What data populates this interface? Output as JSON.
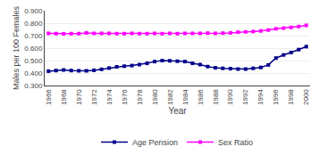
{
  "chart_data": {
    "type": "line",
    "x": [
      1966,
      1967,
      1968,
      1969,
      1970,
      1971,
      1972,
      1973,
      1974,
      1975,
      1976,
      1977,
      1978,
      1979,
      1980,
      1981,
      1982,
      1983,
      1984,
      1985,
      1986,
      1987,
      1988,
      1989,
      1990,
      1991,
      1992,
      1993,
      1994,
      1995,
      1996,
      1997,
      1998,
      1999,
      2000
    ],
    "series": [
      {
        "name": "Age Pension",
        "color": "#00008B",
        "marker": "square",
        "values": [
          0.415,
          0.42,
          0.425,
          0.42,
          0.418,
          0.418,
          0.422,
          0.43,
          0.44,
          0.45,
          0.455,
          0.46,
          0.468,
          0.478,
          0.492,
          0.5,
          0.498,
          0.495,
          0.492,
          0.478,
          0.468,
          0.452,
          0.442,
          0.438,
          0.435,
          0.432,
          0.432,
          0.438,
          0.445,
          0.465,
          0.52,
          0.545,
          0.565,
          0.588,
          0.612
        ]
      },
      {
        "name": "Sex Ratio",
        "color": "#FF00FF",
        "marker": "square",
        "values": [
          0.718,
          0.716,
          0.714,
          0.716,
          0.716,
          0.722,
          0.718,
          0.718,
          0.718,
          0.716,
          0.716,
          0.718,
          0.716,
          0.716,
          0.718,
          0.716,
          0.718,
          0.716,
          0.718,
          0.718,
          0.718,
          0.72,
          0.718,
          0.72,
          0.722,
          0.728,
          0.73,
          0.733,
          0.738,
          0.745,
          0.755,
          0.76,
          0.766,
          0.773,
          0.782
        ]
      }
    ],
    "x_label": "Year",
    "y_label": "Males per 100 Females",
    "xlim": [
      1965.5,
      2000.5
    ],
    "xticks": [
      1966,
      1968,
      1970,
      1972,
      1974,
      1976,
      1978,
      1980,
      1982,
      1984,
      1986,
      1988,
      1990,
      1992,
      1994,
      1996,
      1998,
      2000
    ],
    "ylim": [
      0.3,
      0.9
    ],
    "yticks": [
      {
        "value": 0.3,
        "label": "0.300"
      },
      {
        "value": 0.4,
        "label": "0.400"
      },
      {
        "value": 0.5,
        "label": "0.500"
      },
      {
        "value": 0.6,
        "label": "0.600"
      },
      {
        "value": 0.7,
        "label": "0.700"
      },
      {
        "value": 0.8,
        "label": "0.800"
      },
      {
        "value": 0.9,
        "label": "0.900"
      }
    ],
    "grid": "y",
    "legend": "bottom"
  }
}
